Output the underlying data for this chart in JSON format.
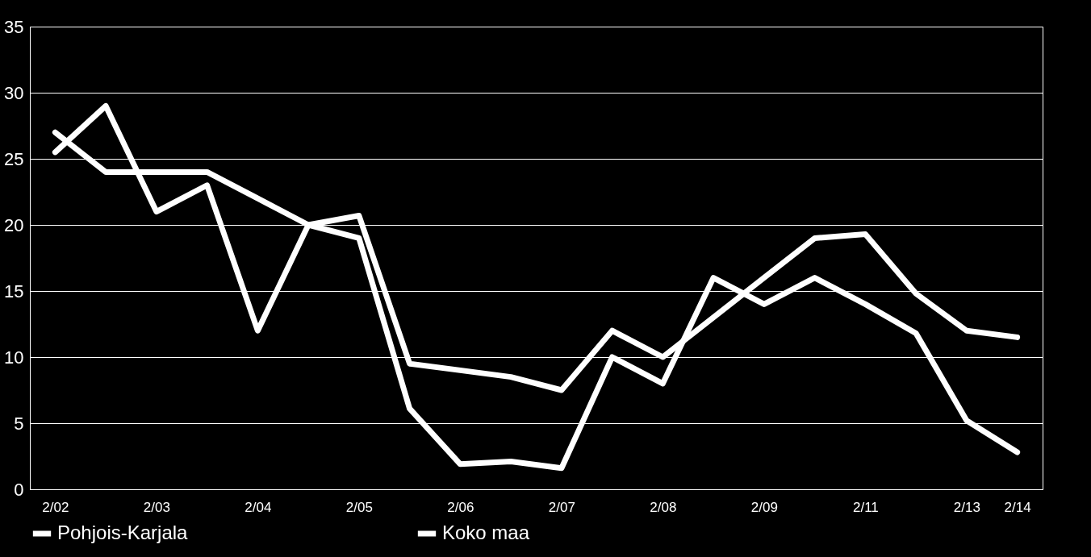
{
  "chart_data": {
    "type": "line",
    "categories": [
      "2/02",
      null,
      "2/03",
      null,
      "2/04",
      null,
      "2/05",
      null,
      "2/06",
      null,
      "2/07",
      null,
      "2/08",
      null,
      "2/09",
      null,
      "2/11",
      null,
      "2/13",
      "2/14"
    ],
    "series": [
      {
        "name": "Pohjois-Karjala",
        "color": "#ffffff",
        "values": [
          25.5,
          29,
          21,
          23,
          12,
          20,
          20.7,
          9.5,
          9,
          8.5,
          7.5,
          12,
          10,
          13,
          16,
          19,
          19.3,
          14.8,
          12,
          11.5
        ]
      },
      {
        "name": "Koko maa",
        "color": "#ffffff",
        "values": [
          27,
          24,
          24,
          24,
          22,
          20,
          19,
          6.1,
          1.9,
          2.1,
          1.6,
          10,
          8,
          16,
          14,
          16,
          14,
          11.8,
          5.2,
          2.8
        ]
      }
    ],
    "ylim": [
      0,
      35
    ],
    "yticks": [
      0,
      5,
      10,
      15,
      20,
      25,
      30,
      35
    ],
    "grid": "y",
    "legend": "bottom",
    "marker": "none",
    "line_style": "solid"
  }
}
